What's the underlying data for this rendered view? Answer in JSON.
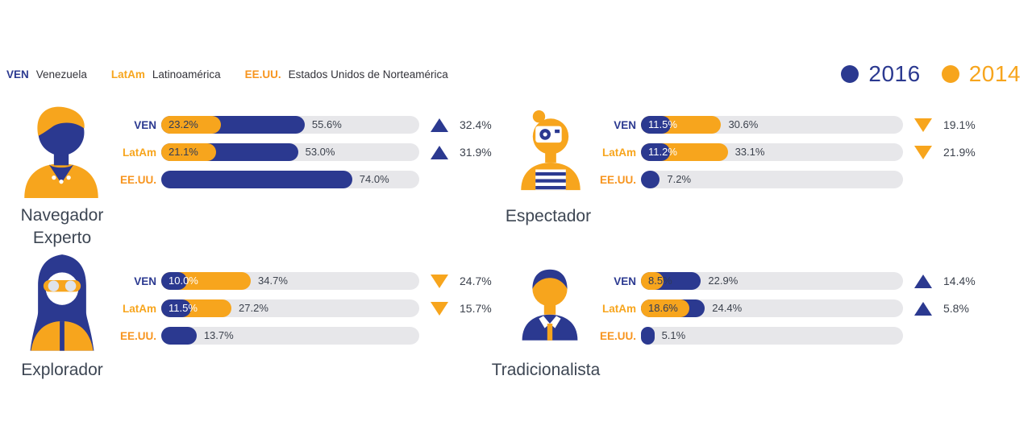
{
  "legend": {
    "regions": [
      {
        "abbr": "VEN",
        "name": "Venezuela"
      },
      {
        "abbr": "LatAm",
        "name": "Latinoamérica"
      },
      {
        "abbr": "EE.UU.",
        "name": "Estados Unidos de Norteamérica"
      }
    ],
    "years": [
      {
        "label": "2016",
        "color": "#2b3990"
      },
      {
        "label": "2014",
        "color": "#f7a51d"
      }
    ]
  },
  "colors": {
    "blue_2016": "#2b3990",
    "gold_2014": "#f7a51d",
    "eeuu_label": "#f7941e",
    "track_gray": "#e7e7ea",
    "text_dark": "#3c424d"
  },
  "icons": {
    "navegador_avatar": "person-with-swept-hair-avatar",
    "espectador_avatar": "person-holding-camera-avatar",
    "explorador_avatar": "hooded-person-with-goggles-avatar",
    "tradicionalista_avatar": "man-with-collared-shirt-avatar",
    "trend_up": "triangle-up",
    "trend_down": "triangle-down"
  },
  "chart_data": {
    "type": "bar",
    "unit": "percent",
    "orientation": "horizontal",
    "legend_position": "top-right",
    "series_legend": [
      {
        "name": "2016",
        "color": "#2b3990"
      },
      {
        "name": "2014",
        "color": "#f7a51d"
      }
    ],
    "xlim": [
      0,
      100
    ],
    "groups": [
      {
        "title": "Navegador Experto",
        "title_lines": [
          "Navegador",
          "Experto"
        ],
        "rows": [
          {
            "region": "VEN",
            "v2014": 23.2,
            "v2016": 55.6,
            "delta": 32.4,
            "trend": "up",
            "labels": {
              "v2014": "23.2%",
              "v2016": "55.6%",
              "delta": "32.4%"
            }
          },
          {
            "region": "LatAm",
            "v2014": 21.1,
            "v2016": 53.0,
            "delta": 31.9,
            "trend": "up",
            "labels": {
              "v2014": "21.1%",
              "v2016": "53.0%",
              "delta": "31.9%"
            }
          },
          {
            "region": "EE.UU.",
            "v2016": 74.0,
            "labels": {
              "v2016": "74.0%"
            }
          }
        ]
      },
      {
        "title": "Espectador",
        "title_lines": [
          "Espectador"
        ],
        "rows": [
          {
            "region": "VEN",
            "v2014": 30.6,
            "v2016": 11.5,
            "delta": 19.1,
            "trend": "down",
            "labels": {
              "v2014": "30.6%",
              "v2016": "11.5%",
              "delta": "19.1%"
            }
          },
          {
            "region": "LatAm",
            "v2014": 33.1,
            "v2016": 11.2,
            "delta": 21.9,
            "trend": "down",
            "labels": {
              "v2014": "33.1%",
              "v2016": "11.2%",
              "delta": "21.9%"
            }
          },
          {
            "region": "EE.UU.",
            "v2016": 7.2,
            "labels": {
              "v2016": "7.2%"
            }
          }
        ]
      },
      {
        "title": "Explorador",
        "title_lines": [
          "Explorador"
        ],
        "rows": [
          {
            "region": "VEN",
            "v2014": 34.7,
            "v2016": 10.0,
            "delta": 24.7,
            "trend": "down",
            "labels": {
              "v2014": "34.7%",
              "v2016": "10.0%",
              "delta": "24.7%"
            }
          },
          {
            "region": "LatAm",
            "v2014": 27.2,
            "v2016": 11.5,
            "delta": 15.7,
            "trend": "down",
            "labels": {
              "v2014": "27.2%",
              "v2016": "11.5%",
              "delta": "15.7%"
            }
          },
          {
            "region": "EE.UU.",
            "v2016": 13.7,
            "labels": {
              "v2016": "13.7%"
            }
          }
        ]
      },
      {
        "title": "Tradicionalista",
        "title_lines": [
          "Tradicionalista"
        ],
        "rows": [
          {
            "region": "VEN",
            "v2014": 8.5,
            "v2016": 22.9,
            "delta": 14.4,
            "trend": "up",
            "labels": {
              "v2014": "8.5%",
              "v2016": "22.9%",
              "delta": "14.4%"
            }
          },
          {
            "region": "LatAm",
            "v2014": 18.6,
            "v2016": 24.4,
            "delta": 5.8,
            "trend": "up",
            "labels": {
              "v2014": "18.6%",
              "v2016": "24.4%",
              "delta": "5.8%"
            }
          },
          {
            "region": "EE.UU.",
            "v2016": 5.1,
            "labels": {
              "v2016": "5.1%"
            }
          }
        ]
      }
    ]
  }
}
